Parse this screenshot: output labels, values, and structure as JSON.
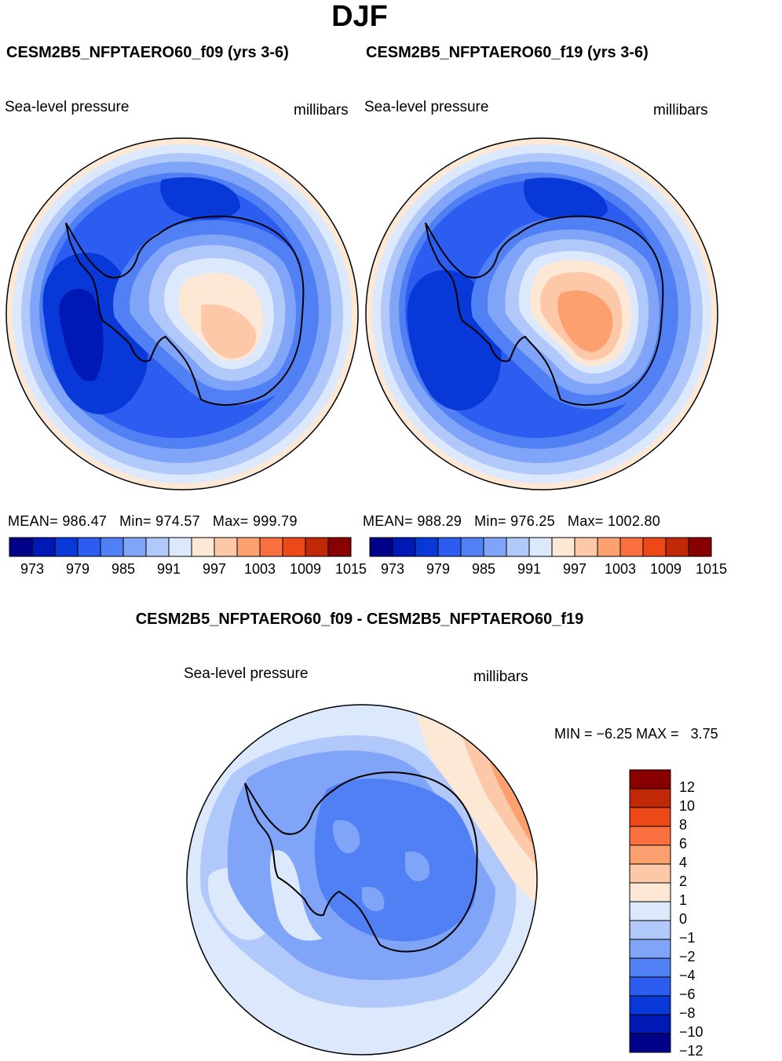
{
  "header": {
    "title": "DJF"
  },
  "panels": [
    {
      "title": "CESM2B5_NFPTAERO60_f09 (yrs 3-6)",
      "left_label": "Sea-level pressure",
      "right_label": "millibars",
      "stats": {
        "mean_label": "MEAN=",
        "mean": "986.47",
        "min_label": "Min=",
        "min": "974.57",
        "max_label": "Max=",
        "max": "999.79"
      }
    },
    {
      "title": "CESM2B5_NFPTAERO60_f19 (yrs 3-6)",
      "left_label": "Sea-level pressure",
      "right_label": "millibars",
      "stats": {
        "mean_label": "MEAN=",
        "mean": "988.29",
        "min_label": "Min=",
        "min": "976.25",
        "max_label": "Max=",
        "max": "1002.80"
      }
    }
  ],
  "colorbar_top": {
    "colors": [
      "#000088",
      "#0018b4",
      "#0838d8",
      "#2c5cf0",
      "#5080f4",
      "#80a4f8",
      "#b0c8fa",
      "#dce8fc",
      "#fde8d6",
      "#fcc8a8",
      "#fca070",
      "#fa7040",
      "#ec4818",
      "#c02808",
      "#880000"
    ],
    "tick_labels": [
      "973",
      "979",
      "985",
      "991",
      "997",
      "1003",
      "1009",
      "1015"
    ]
  },
  "difference": {
    "title": "CESM2B5_NFPTAERO60_f09 - CESM2B5_NFPTAERO60_f19",
    "left_label": "Sea-level pressure",
    "right_label": "millibars",
    "min_label": "MIN =",
    "min": "−6.25",
    "max_label": "MAX =",
    "max": "3.75",
    "colorbar": {
      "colors": [
        "#880000",
        "#c02808",
        "#ec4818",
        "#fa7040",
        "#fca070",
        "#fcc8a8",
        "#fde8d6",
        "#dce8fc",
        "#b0c8fa",
        "#80a4f8",
        "#5080f4",
        "#2c5cf0",
        "#0838d8",
        "#0018b4",
        "#000088"
      ],
      "tick_labels": [
        "12",
        "10",
        "8",
        "6",
        "4",
        "2",
        "1",
        "0",
        "−1",
        "−2",
        "−4",
        "−6",
        "−8",
        "−10",
        "−12"
      ]
    }
  }
}
